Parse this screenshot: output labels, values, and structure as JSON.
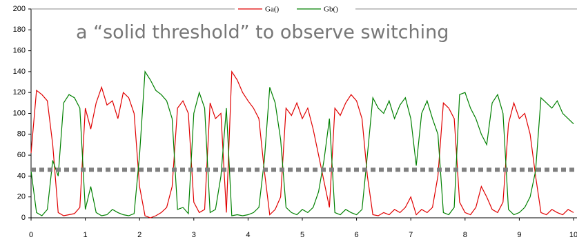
{
  "chart_data": {
    "type": "line",
    "annotation": "a “solid threshold” to observe switching",
    "threshold": 46,
    "threshold_color": "#808080",
    "x": [
      0,
      0.1,
      0.2,
      0.3,
      0.4,
      0.5,
      0.6,
      0.7,
      0.8,
      0.9,
      1,
      1.1,
      1.2,
      1.3,
      1.4,
      1.5,
      1.6,
      1.7,
      1.8,
      1.9,
      2,
      2.1,
      2.2,
      2.3,
      2.4,
      2.5,
      2.6,
      2.7,
      2.8,
      2.9,
      3,
      3.1,
      3.2,
      3.3,
      3.4,
      3.5,
      3.6,
      3.7,
      3.8,
      3.9,
      4,
      4.1,
      4.2,
      4.3,
      4.4,
      4.5,
      4.6,
      4.7,
      4.8,
      4.9,
      5,
      5.1,
      5.2,
      5.3,
      5.4,
      5.5,
      5.6,
      5.7,
      5.8,
      5.9,
      6,
      6.1,
      6.2,
      6.3,
      6.4,
      6.5,
      6.6,
      6.7,
      6.8,
      6.9,
      7,
      7.1,
      7.2,
      7.3,
      7.4,
      7.5,
      7.6,
      7.7,
      7.8,
      7.9,
      8,
      8.1,
      8.2,
      8.3,
      8.4,
      8.5,
      8.6,
      8.7,
      8.8,
      8.9,
      9,
      9.1,
      9.2,
      9.3,
      9.4,
      9.5,
      9.6,
      9.7,
      9.8,
      9.9,
      10
    ],
    "series": [
      {
        "name": "Ga()",
        "color": "#e00000",
        "values": [
          62,
          122,
          118,
          112,
          70,
          5,
          2,
          3,
          4,
          10,
          105,
          85,
          110,
          125,
          108,
          112,
          95,
          120,
          115,
          100,
          30,
          2,
          0,
          2,
          5,
          10,
          30,
          105,
          112,
          100,
          15,
          5,
          8,
          110,
          95,
          100,
          5,
          140,
          132,
          120,
          112,
          105,
          95,
          45,
          3,
          8,
          20,
          105,
          98,
          110,
          95,
          105,
          85,
          60,
          35,
          10,
          105,
          98,
          110,
          118,
          112,
          95,
          40,
          3,
          2,
          5,
          3,
          8,
          5,
          10,
          20,
          3,
          8,
          5,
          10,
          40,
          110,
          105,
          95,
          15,
          5,
          3,
          10,
          30,
          20,
          8,
          5,
          15,
          90,
          110,
          95,
          100,
          80,
          40,
          5,
          3,
          8,
          5,
          3,
          8,
          5
        ]
      },
      {
        "name": "Gb()",
        "color": "#008000",
        "values": [
          45,
          5,
          2,
          8,
          55,
          40,
          110,
          118,
          115,
          105,
          8,
          30,
          5,
          2,
          3,
          8,
          5,
          3,
          2,
          4,
          60,
          140,
          132,
          122,
          118,
          112,
          95,
          8,
          10,
          4,
          100,
          120,
          105,
          5,
          8,
          40,
          105,
          2,
          3,
          2,
          3,
          5,
          10,
          55,
          125,
          110,
          75,
          10,
          5,
          3,
          8,
          5,
          10,
          25,
          55,
          95,
          5,
          3,
          8,
          5,
          3,
          8,
          60,
          115,
          105,
          100,
          112,
          95,
          108,
          115,
          95,
          50,
          100,
          112,
          95,
          80,
          5,
          3,
          10,
          118,
          120,
          105,
          95,
          80,
          70,
          110,
          118,
          100,
          8,
          3,
          5,
          10,
          20,
          45,
          115,
          110,
          105,
          112,
          100,
          95,
          90
        ]
      }
    ],
    "xlim": [
      0,
      10
    ],
    "xticks": [
      0,
      1,
      2,
      3,
      4,
      5,
      6,
      7,
      8,
      9,
      10
    ],
    "ylim": [
      0,
      200
    ],
    "yticks": [
      0,
      20,
      40,
      60,
      80,
      100,
      120,
      140,
      160,
      180,
      200
    ],
    "legend": "top"
  }
}
